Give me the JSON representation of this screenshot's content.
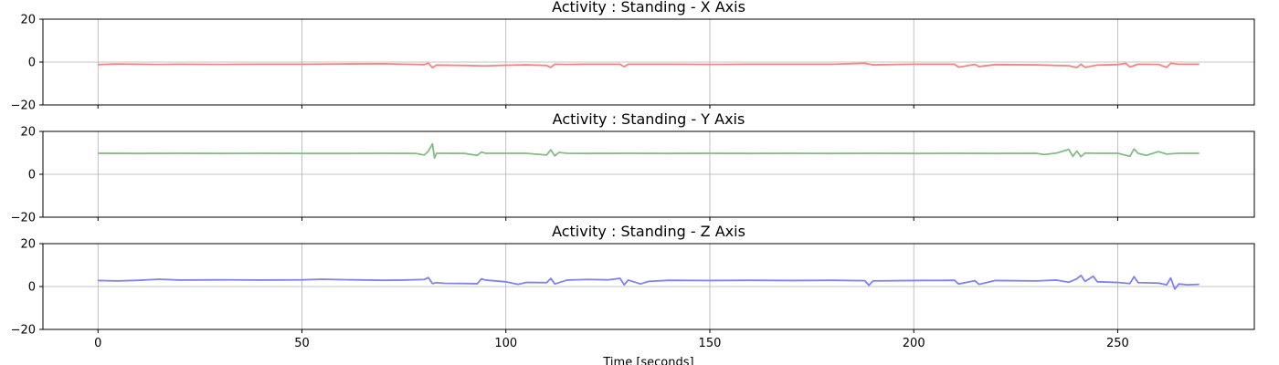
{
  "chart_data": [
    {
      "type": "line",
      "title": "Activity : Standing - X Axis",
      "xlim": [
        -13.5,
        283.5
      ],
      "ylim": [
        -20,
        20
      ],
      "yticks": [
        -20,
        0,
        20
      ],
      "xticks": [
        0,
        50,
        100,
        150,
        200,
        250
      ],
      "show_x_tick_labels": false,
      "xlabel": "",
      "grid": true,
      "series": [
        {
          "color": "#ff7f7f",
          "x": [
            0,
            5,
            10,
            15,
            20,
            30,
            40,
            50,
            60,
            70,
            75,
            80,
            81,
            82,
            83,
            90,
            95,
            100,
            105,
            110,
            111,
            112,
            115,
            120,
            128,
            129,
            130,
            135,
            140,
            150,
            160,
            170,
            180,
            188,
            190,
            200,
            210,
            211,
            215,
            216,
            220,
            230,
            235,
            238,
            240,
            241,
            242,
            245,
            250,
            252,
            253,
            255,
            260,
            262,
            263,
            265,
            270
          ],
          "y": [
            -1.2,
            -0.9,
            -1.0,
            -1.1,
            -1.0,
            -1.1,
            -1.0,
            -1.0,
            -0.9,
            -0.8,
            -1.0,
            -1.2,
            -0.5,
            -2.6,
            -1.4,
            -1.6,
            -1.8,
            -1.5,
            -1.3,
            -1.6,
            -2.5,
            -1.0,
            -1.1,
            -1.0,
            -1.0,
            -2.2,
            -1.0,
            -1.0,
            -1.0,
            -1.1,
            -1.0,
            -1.0,
            -1.0,
            -0.6,
            -1.3,
            -1.0,
            -1.0,
            -2.4,
            -1.1,
            -2.1,
            -1.2,
            -1.3,
            -1.6,
            -1.7,
            -2.6,
            -1.0,
            -2.5,
            -1.4,
            -1.2,
            -0.6,
            -2.3,
            -1.0,
            -1.1,
            -2.5,
            -0.6,
            -1.0,
            -1.0
          ]
        }
      ]
    },
    {
      "type": "line",
      "title": "Activity : Standing - Y Axis",
      "xlim": [
        -13.5,
        283.5
      ],
      "ylim": [
        -20,
        20
      ],
      "yticks": [
        -20,
        0,
        20
      ],
      "xticks": [
        0,
        50,
        100,
        150,
        200,
        250
      ],
      "show_x_tick_labels": false,
      "xlabel": "",
      "grid": true,
      "series": [
        {
          "color": "#7fbf7f",
          "x": [
            0,
            10,
            20,
            30,
            40,
            50,
            60,
            70,
            78,
            80,
            81,
            82,
            82.5,
            83,
            85,
            90,
            93,
            94,
            95,
            100,
            105,
            110,
            111,
            112,
            113,
            115,
            120,
            130,
            140,
            150,
            160,
            170,
            180,
            190,
            200,
            210,
            220,
            230,
            232,
            235,
            238,
            239,
            240,
            241,
            242,
            245,
            250,
            253,
            254,
            255,
            257,
            260,
            262,
            265,
            270
          ],
          "y": [
            9.8,
            9.7,
            9.8,
            9.7,
            9.8,
            9.7,
            9.7,
            9.8,
            9.7,
            9.0,
            10.8,
            14.2,
            7.6,
            9.8,
            9.8,
            9.7,
            8.8,
            10.4,
            9.8,
            9.8,
            9.8,
            9.0,
            11.4,
            8.6,
            10.2,
            9.8,
            9.7,
            9.8,
            9.7,
            9.8,
            9.7,
            9.8,
            9.7,
            9.8,
            9.7,
            9.8,
            9.7,
            9.8,
            9.2,
            9.9,
            11.6,
            8.4,
            10.8,
            8.2,
            9.9,
            9.8,
            9.8,
            8.4,
            11.8,
            9.8,
            8.8,
            10.6,
            9.4,
            9.8,
            9.8
          ]
        }
      ]
    },
    {
      "type": "line",
      "title": "Activity : Standing - Z Axis",
      "xlim": [
        -13.5,
        283.5
      ],
      "ylim": [
        -20,
        20
      ],
      "yticks": [
        -20,
        0,
        20
      ],
      "xticks": [
        0,
        50,
        100,
        150,
        200,
        250
      ],
      "show_x_tick_labels": true,
      "xlabel": "Time [seconds]",
      "grid": true,
      "series": [
        {
          "color": "#7f7fff",
          "x": [
            0,
            5,
            10,
            15,
            20,
            30,
            40,
            50,
            55,
            60,
            70,
            75,
            80,
            81,
            82,
            83,
            85,
            90,
            93,
            94,
            95,
            100,
            103,
            105,
            110,
            111,
            112,
            115,
            120,
            125,
            128,
            129,
            130,
            133,
            135,
            140,
            150,
            160,
            170,
            180,
            188,
            189,
            190,
            200,
            210,
            211,
            215,
            216,
            220,
            230,
            235,
            238,
            240,
            241,
            242,
            244,
            245,
            250,
            253,
            254,
            255,
            260,
            262,
            263,
            264,
            265,
            267,
            270
          ],
          "y": [
            2.8,
            2.6,
            2.9,
            3.4,
            3.0,
            3.1,
            3.0,
            3.1,
            3.4,
            3.2,
            2.9,
            3.0,
            3.3,
            4.2,
            1.4,
            1.8,
            1.5,
            1.4,
            1.3,
            3.6,
            3.0,
            2.2,
            1.0,
            1.9,
            1.8,
            3.8,
            1.2,
            3.0,
            3.3,
            3.1,
            3.8,
            0.8,
            3.0,
            1.2,
            2.4,
            2.9,
            2.8,
            2.9,
            2.8,
            2.9,
            2.7,
            0.6,
            2.6,
            2.8,
            2.9,
            1.2,
            2.7,
            1.0,
            2.8,
            2.6,
            3.0,
            2.0,
            3.6,
            5.2,
            2.4,
            4.8,
            2.2,
            1.9,
            1.4,
            4.6,
            1.8,
            1.6,
            0.8,
            4.0,
            -1.2,
            1.2,
            0.8,
            1.0
          ]
        }
      ]
    }
  ]
}
